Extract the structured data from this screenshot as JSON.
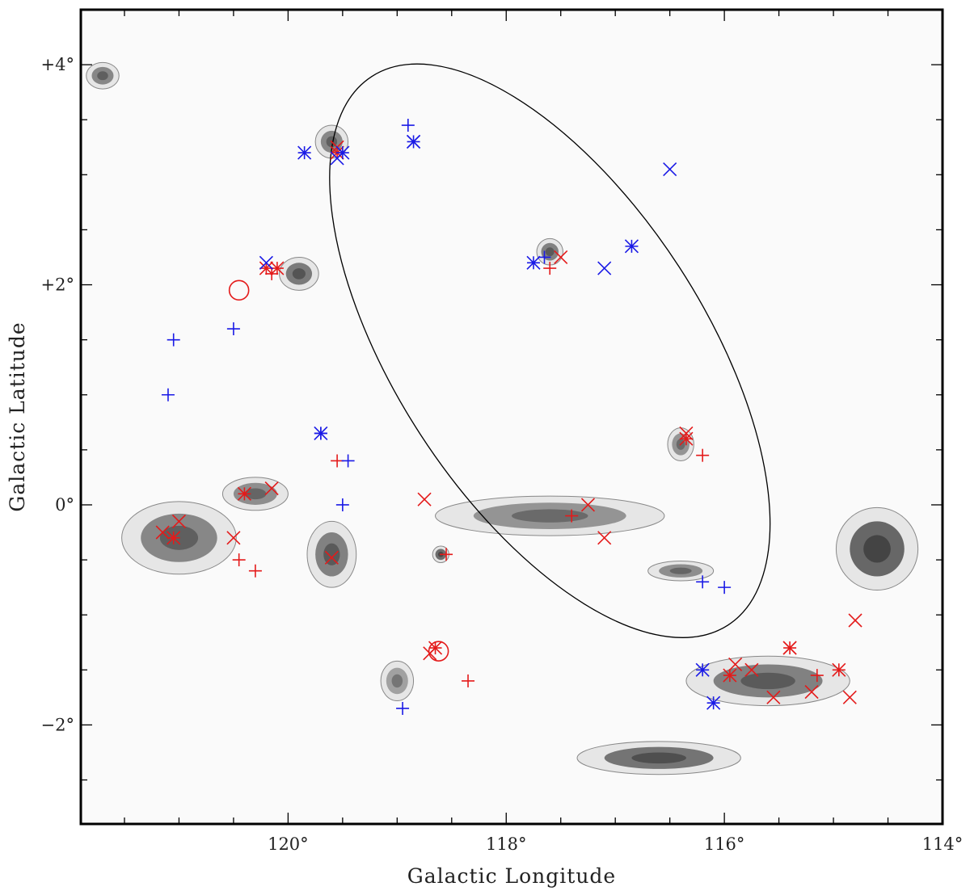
{
  "chart_data": {
    "type": "scatter",
    "xlabel": "Galactic Longitude",
    "ylabel": "Galactic Latitude",
    "xlim": [
      121.9,
      114.0
    ],
    "ylim": [
      -2.9,
      4.5
    ],
    "x_reversed": true,
    "x_ticks": [
      {
        "value": 120,
        "label": "120°"
      },
      {
        "value": 118,
        "label": "118°"
      },
      {
        "value": 116,
        "label": "116°"
      },
      {
        "value": 114,
        "label": "114°"
      }
    ],
    "y_ticks": [
      {
        "value": 4,
        "label": "+4°"
      },
      {
        "value": 2,
        "label": "+2°"
      },
      {
        "value": 0,
        "label": "0°"
      },
      {
        "value": -2,
        "label": "−2°"
      }
    ],
    "minor_x_step": 0.5,
    "minor_y_step": 0.5,
    "background": "grayscale map with contour",
    "colors": {
      "red": "#e41a1a",
      "blue": "#1a1ae6",
      "contour": "#888888",
      "ellipse": "#000000"
    },
    "ellipse": {
      "center": [
        117.6,
        1.4
      ],
      "semi_major": 3.0,
      "semi_minor": 1.4,
      "angle_deg": 57
    },
    "emission": [
      {
        "l": 121.7,
        "b": 3.9,
        "sl": 0.1,
        "sb": 0.08,
        "peak": 0.5
      },
      {
        "l": 119.6,
        "b": 3.3,
        "sl": 0.1,
        "sb": 0.1,
        "peak": 0.5
      },
      {
        "l": 119.9,
        "b": 2.1,
        "sl": 0.12,
        "sb": 0.1,
        "peak": 0.6
      },
      {
        "l": 117.6,
        "b": 2.3,
        "sl": 0.08,
        "sb": 0.08,
        "peak": 0.55
      },
      {
        "l": 120.3,
        "b": 0.1,
        "sl": 0.2,
        "sb": 0.1,
        "peak": 0.45
      },
      {
        "l": 121.0,
        "b": -0.3,
        "sl": 0.35,
        "sb": 0.22,
        "peak": 0.5
      },
      {
        "l": 119.6,
        "b": -0.45,
        "sl": 0.15,
        "sb": 0.2,
        "peak": 0.55
      },
      {
        "l": 117.6,
        "b": -0.1,
        "sl": 0.7,
        "sb": 0.12,
        "peak": 0.4
      },
      {
        "l": 116.4,
        "b": 0.55,
        "sl": 0.08,
        "sb": 0.1,
        "peak": 0.4
      },
      {
        "l": 114.6,
        "b": -0.4,
        "sl": 0.25,
        "sb": 0.25,
        "peak": 0.75
      },
      {
        "l": 115.6,
        "b": -1.6,
        "sl": 0.5,
        "sb": 0.15,
        "peak": 0.55
      },
      {
        "l": 116.4,
        "b": -0.6,
        "sl": 0.2,
        "sb": 0.06,
        "peak": 0.45
      },
      {
        "l": 116.6,
        "b": -2.3,
        "sl": 0.5,
        "sb": 0.1,
        "peak": 0.65
      },
      {
        "l": 118.6,
        "b": -0.45,
        "sl": 0.05,
        "sb": 0.05,
        "peak": 0.7
      },
      {
        "l": 119.0,
        "b": -1.6,
        "sl": 0.1,
        "sb": 0.12,
        "peak": 0.3
      }
    ],
    "series": [
      {
        "marker": "x",
        "color": "red",
        "points": [
          [
            121.0,
            -0.15
          ],
          [
            121.15,
            -0.25
          ],
          [
            120.5,
            -0.3
          ],
          [
            120.15,
            0.15
          ],
          [
            119.6,
            -0.48
          ],
          [
            118.75,
            0.05
          ],
          [
            117.25,
            0.0
          ],
          [
            117.1,
            -0.3
          ],
          [
            116.35,
            0.65
          ],
          [
            115.9,
            -1.45
          ],
          [
            115.75,
            -1.5
          ],
          [
            115.55,
            -1.75
          ],
          [
            115.4,
            -1.3
          ],
          [
            115.2,
            -1.7
          ],
          [
            114.95,
            -1.5
          ],
          [
            114.8,
            -1.05
          ],
          [
            114.85,
            -1.75
          ],
          [
            118.7,
            -1.35
          ],
          [
            117.5,
            2.25
          ],
          [
            119.55,
            3.25
          ]
        ]
      },
      {
        "marker": "plus",
        "color": "red",
        "points": [
          [
            120.45,
            -0.5
          ],
          [
            120.3,
            -0.6
          ],
          [
            119.55,
            0.4
          ],
          [
            118.55,
            -0.45
          ],
          [
            118.35,
            -1.6
          ],
          [
            117.6,
            2.15
          ],
          [
            117.4,
            -0.1
          ],
          [
            116.2,
            0.45
          ],
          [
            115.15,
            -1.55
          ],
          [
            114.95,
            -1.5
          ],
          [
            120.15,
            2.1
          ]
        ]
      },
      {
        "marker": "asterisk",
        "color": "red",
        "points": [
          [
            121.05,
            -0.3
          ],
          [
            120.4,
            0.1
          ],
          [
            120.2,
            2.15
          ],
          [
            120.1,
            2.15
          ],
          [
            119.55,
            3.2
          ],
          [
            118.65,
            -1.3
          ],
          [
            116.35,
            0.6
          ],
          [
            115.95,
            -1.55
          ],
          [
            115.4,
            -1.3
          ]
        ]
      },
      {
        "marker": "x",
        "color": "blue",
        "points": [
          [
            119.55,
            3.15
          ],
          [
            118.85,
            3.3
          ],
          [
            116.5,
            3.05
          ],
          [
            117.1,
            2.15
          ],
          [
            120.2,
            2.2
          ]
        ]
      },
      {
        "marker": "plus",
        "color": "blue",
        "points": [
          [
            121.05,
            1.5
          ],
          [
            120.5,
            1.6
          ],
          [
            121.1,
            1.0
          ],
          [
            119.45,
            0.4
          ],
          [
            119.5,
            0.0
          ],
          [
            119.7,
            0.65
          ],
          [
            118.95,
            -1.85
          ],
          [
            116.2,
            -0.7
          ],
          [
            116.0,
            -0.75
          ],
          [
            118.9,
            3.45
          ],
          [
            117.65,
            2.25
          ]
        ]
      },
      {
        "marker": "asterisk",
        "color": "blue",
        "points": [
          [
            119.85,
            3.2
          ],
          [
            119.5,
            3.2
          ],
          [
            118.85,
            3.3
          ],
          [
            117.75,
            2.2
          ],
          [
            116.85,
            2.35
          ],
          [
            119.7,
            0.65
          ],
          [
            116.2,
            -1.5
          ],
          [
            116.1,
            -1.8
          ]
        ]
      },
      {
        "marker": "circle",
        "color": "red",
        "points": [
          [
            120.45,
            1.95
          ],
          [
            118.62,
            -1.33
          ]
        ]
      }
    ]
  }
}
